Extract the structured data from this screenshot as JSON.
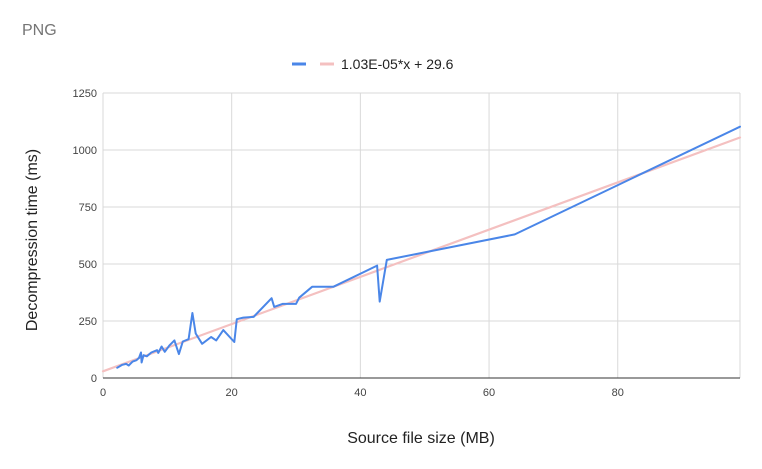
{
  "chart_data": {
    "type": "line",
    "title": "PNG",
    "xlabel": "Source file size (MB)",
    "ylabel": "Decompression time (ms)",
    "xlim": [
      0,
      99
    ],
    "ylim": [
      0,
      1250
    ],
    "x_ticks": [
      0,
      20,
      40,
      60,
      80
    ],
    "y_ticks": [
      0,
      250,
      500,
      750,
      1000,
      1250
    ],
    "legend": {
      "position": "top",
      "entries": [
        "1.03E-05*x + 29.6"
      ]
    },
    "series": [
      {
        "name": "Decompression time",
        "color": "#4a86e8",
        "points": [
          [
            2.2,
            45
          ],
          [
            3.0,
            58
          ],
          [
            3.6,
            62
          ],
          [
            4.0,
            55
          ],
          [
            4.6,
            72
          ],
          [
            5.2,
            78
          ],
          [
            5.6,
            88
          ],
          [
            5.9,
            112
          ],
          [
            6.0,
            68
          ],
          [
            6.3,
            100
          ],
          [
            6.8,
            95
          ],
          [
            7.5,
            112
          ],
          [
            8.4,
            122
          ],
          [
            8.6,
            110
          ],
          [
            9.1,
            138
          ],
          [
            9.6,
            115
          ],
          [
            10.3,
            142
          ],
          [
            11.1,
            165
          ],
          [
            11.8,
            105
          ],
          [
            12.4,
            160
          ],
          [
            13.3,
            170
          ],
          [
            13.9,
            285
          ],
          [
            14.4,
            195
          ],
          [
            15.4,
            150
          ],
          [
            16.8,
            180
          ],
          [
            17.6,
            165
          ],
          [
            18.7,
            210
          ],
          [
            20.4,
            158
          ],
          [
            20.8,
            258
          ],
          [
            21.8,
            265
          ],
          [
            23.4,
            268
          ],
          [
            26.2,
            350
          ],
          [
            26.6,
            312
          ],
          [
            27.9,
            325
          ],
          [
            30.0,
            325
          ],
          [
            30.5,
            352
          ],
          [
            32.5,
            400
          ],
          [
            35.8,
            400
          ],
          [
            42.6,
            493
          ],
          [
            43.0,
            335
          ],
          [
            44.1,
            518
          ],
          [
            64.0,
            630
          ],
          [
            99.0,
            1102
          ]
        ]
      },
      {
        "name": "1.03E-05*x + 29.6",
        "color": "#f4c0c0",
        "points": [
          [
            0,
            29.6
          ],
          [
            99,
            1055
          ]
        ]
      }
    ]
  }
}
